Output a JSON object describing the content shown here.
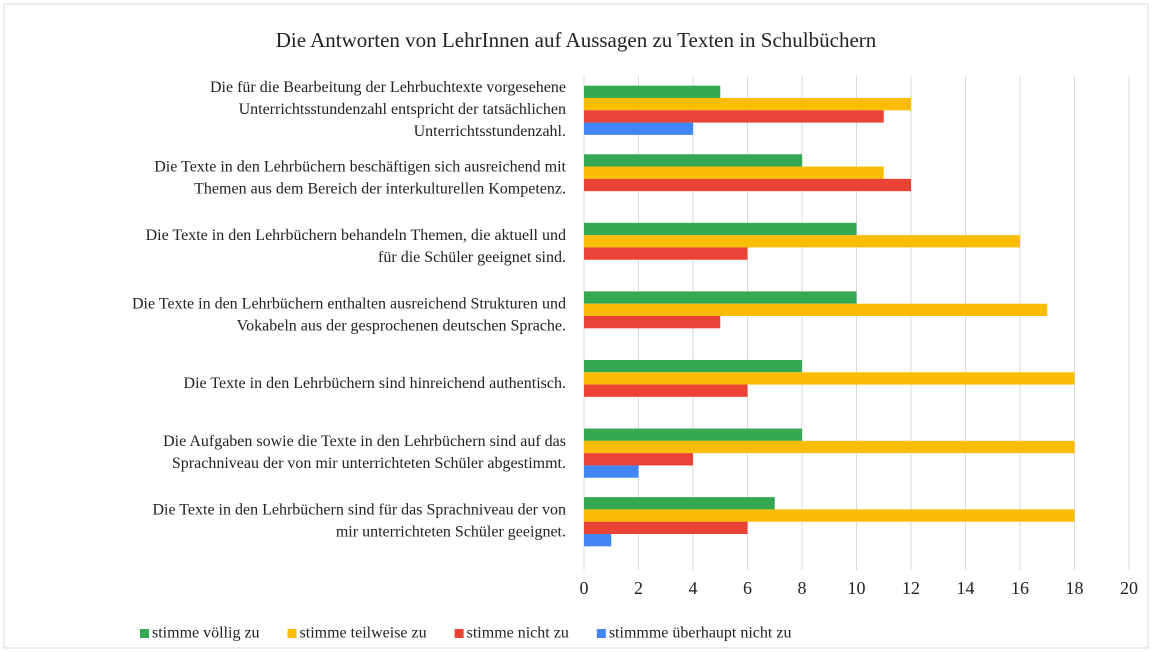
{
  "chart_data": {
    "type": "hbar",
    "title": "Die Antworten von LehrInnen auf Aussagen zu Texten in Schulbüchern",
    "categories": [
      [
        "Die für die Bearbeitung der Lehrbuchtexte vorgesehene",
        "Unterrichtsstundenzahl entspricht der tatsächlichen",
        "Unterrichtsstundenzahl."
      ],
      [
        "Die Texte in den Lehrbüchern beschäftigen sich ausreichend mit",
        "Themen aus dem Bereich der interkulturellen Kompetenz."
      ],
      [
        "Die Texte in den Lehrbüchern behandeln Themen, die aktuell und",
        "für die Schüler geeignet sind."
      ],
      [
        "Die Texte in den Lehrbüchern enthalten ausreichend Strukturen und",
        "Vokabeln aus der gesprochenen deutschen Sprache."
      ],
      [
        "Die Texte in den Lehrbüchern sind hinreichend authentisch."
      ],
      [
        "Die Aufgaben sowie die Texte in den Lehrbüchern sind auf das",
        "Sprachniveau der von mir unterrichteten Schüler abgestimmt."
      ],
      [
        "Die Texte in den Lehrbüchern sind für das Sprachniveau der von",
        "mir unterrichteten Schüler geeignet."
      ]
    ],
    "series": [
      {
        "name": "stimme völlig zu",
        "color": "#34a853",
        "values": [
          5,
          8,
          10,
          10,
          8,
          8,
          7
        ]
      },
      {
        "name": "stimme teilweise zu",
        "color": "#fbbc04",
        "values": [
          12,
          11,
          16,
          17,
          18,
          18,
          18
        ]
      },
      {
        "name": "stimme nicht zu",
        "color": "#ea4335",
        "values": [
          11,
          12,
          6,
          5,
          6,
          4,
          6
        ]
      },
      {
        "name": "stimmme überhaupt nicht zu",
        "color": "#4285f4",
        "values": [
          4,
          0,
          0,
          0,
          0,
          2,
          1
        ]
      }
    ],
    "xlim": [
      0,
      20
    ],
    "xticks": [
      0,
      2,
      4,
      6,
      8,
      10,
      12,
      14,
      16,
      18,
      20
    ],
    "grid": true,
    "legend": "bottom"
  }
}
